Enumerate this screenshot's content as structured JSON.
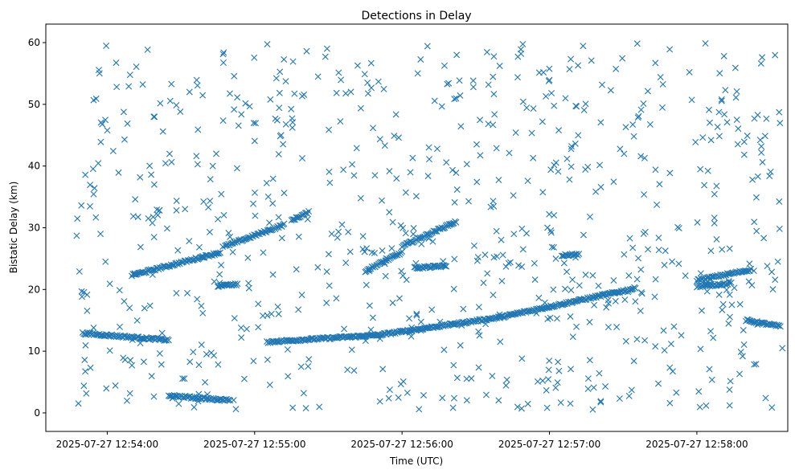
{
  "chart_data": {
    "type": "scatter",
    "title": "Detections in Delay",
    "xlabel": "Time (UTC)",
    "ylabel": "Bistatic Delay (km)",
    "marker": "x",
    "color": "#1f77b4",
    "grid": false,
    "x_format": "YYYY-MM-DD HH:MM:SS",
    "xlim": [
      "2025-07-27 12:53:35",
      "2025-07-27 12:58:37"
    ],
    "ylim": [
      -3,
      63
    ],
    "xticks": [
      {
        "value": "2025-07-27 12:54:00",
        "label": "2025-07-27 12:54:00"
      },
      {
        "value": "2025-07-27 12:55:00",
        "label": "2025-07-27 12:55:00"
      },
      {
        "value": "2025-07-27 12:56:00",
        "label": "2025-07-27 12:56:00"
      },
      {
        "value": "2025-07-27 12:57:00",
        "label": "2025-07-27 12:57:00"
      },
      {
        "value": "2025-07-27 12:58:00",
        "label": "2025-07-27 12:58:00"
      }
    ],
    "yticks": [
      0,
      10,
      20,
      30,
      40,
      50,
      60
    ],
    "tracks": [
      {
        "start": [
          "2025-07-27 12:53:50",
          12.9
        ],
        "end": [
          "2025-07-27 12:54:25",
          11.8
        ]
      },
      {
        "start": [
          "2025-07-27 12:54:10",
          22.3
        ],
        "end": [
          "2025-07-27 12:54:46",
          26.0
        ]
      },
      {
        "start": [
          "2025-07-27 12:54:48",
          27.0
        ],
        "end": [
          "2025-07-27 12:55:12",
          30.5
        ]
      },
      {
        "start": [
          "2025-07-27 12:55:15",
          31.2
        ],
        "end": [
          "2025-07-27 12:55:22",
          32.5
        ]
      },
      {
        "start": [
          "2025-07-27 12:55:05",
          11.5
        ],
        "end": [
          "2025-07-27 12:55:50",
          12.6
        ]
      },
      {
        "start": [
          "2025-07-27 12:55:50",
          12.6
        ],
        "end": [
          "2025-07-27 12:56:40",
          15.5
        ]
      },
      {
        "start": [
          "2025-07-27 12:56:40",
          15.5
        ],
        "end": [
          "2025-07-27 12:57:35",
          20.2
        ]
      },
      {
        "start": [
          "2025-07-27 12:55:45",
          23.0
        ],
        "end": [
          "2025-07-27 12:56:00",
          26.0
        ]
      },
      {
        "start": [
          "2025-07-27 12:56:00",
          27.0
        ],
        "end": [
          "2025-07-27 12:56:22",
          31.0
        ]
      },
      {
        "start": [
          "2025-07-27 12:56:05",
          23.5
        ],
        "end": [
          "2025-07-27 12:56:18",
          23.8
        ]
      },
      {
        "start": [
          "2025-07-27 12:58:00",
          21.5
        ],
        "end": [
          "2025-07-27 12:58:22",
          23.2
        ]
      },
      {
        "start": [
          "2025-07-27 12:58:00",
          20.5
        ],
        "end": [
          "2025-07-27 12:58:14",
          21.0
        ]
      },
      {
        "start": [
          "2025-07-27 12:58:20",
          15.0
        ],
        "end": [
          "2025-07-27 12:58:34",
          14.0
        ]
      },
      {
        "start": [
          "2025-07-27 12:54:25",
          2.8
        ],
        "end": [
          "2025-07-27 12:54:50",
          2.0
        ]
      },
      {
        "start": [
          "2025-07-27 12:54:45",
          20.6
        ],
        "end": [
          "2025-07-27 12:54:53",
          20.8
        ]
      },
      {
        "start": [
          "2025-07-27 12:57:05",
          25.5
        ],
        "end": [
          "2025-07-27 12:57:12",
          25.7
        ]
      }
    ],
    "noise_points": 760
  }
}
